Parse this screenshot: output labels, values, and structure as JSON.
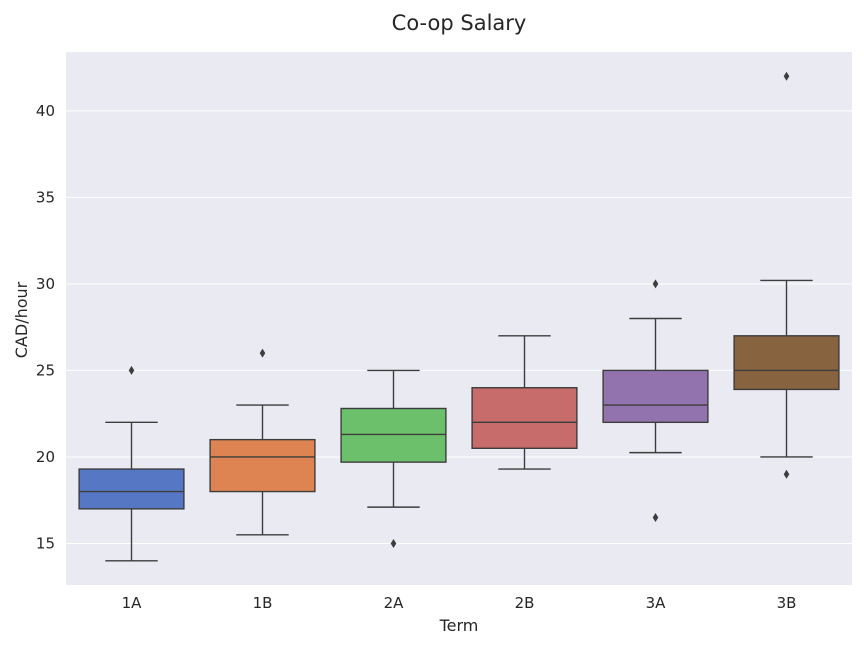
{
  "chart_data": {
    "type": "box",
    "title": "Co-op Salary",
    "xlabel": "Term",
    "ylabel": "CAD/hour",
    "ylim": [
      12.6,
      43.4
    ],
    "yticks": [
      15,
      20,
      25,
      30,
      35,
      40
    ],
    "grid": true,
    "categories": [
      "1A",
      "1B",
      "2A",
      "2B",
      "3A",
      "3B"
    ],
    "boxes": [
      {
        "category": "1A",
        "color": "#5677c3",
        "whisker_low": 14.0,
        "q1": 17.0,
        "median": 18.0,
        "q3": 19.3,
        "whisker_high": 22.0,
        "outliers": [
          25.0
        ]
      },
      {
        "category": "1B",
        "color": "#dd8452",
        "whisker_low": 15.5,
        "q1": 18.0,
        "median": 20.0,
        "q3": 21.0,
        "whisker_high": 23.0,
        "outliers": [
          26.0
        ]
      },
      {
        "category": "2A",
        "color": "#6dc06b",
        "whisker_low": 17.1,
        "q1": 19.7,
        "median": 21.3,
        "q3": 22.8,
        "whisker_high": 25.0,
        "outliers": [
          15.0
        ]
      },
      {
        "category": "2B",
        "color": "#c76b6b",
        "whisker_low": 19.3,
        "q1": 20.5,
        "median": 22.0,
        "q3": 24.0,
        "whisker_high": 27.0,
        "outliers": []
      },
      {
        "category": "3A",
        "color": "#9373ad",
        "whisker_low": 20.25,
        "q1": 22.0,
        "median": 23.0,
        "q3": 25.0,
        "whisker_high": 28.0,
        "outliers": [
          30.0,
          16.5
        ]
      },
      {
        "category": "3B",
        "color": "#87633f",
        "whisker_low": 20.0,
        "q1": 23.9,
        "median": 25.0,
        "q3": 27.0,
        "whisker_high": 30.2,
        "outliers": [
          42.0,
          19.0
        ]
      }
    ]
  },
  "colors": {
    "plot_background": "#eaeaf2",
    "grid": "#ffffff",
    "line": "#3d3d3d",
    "text": "#262626"
  }
}
